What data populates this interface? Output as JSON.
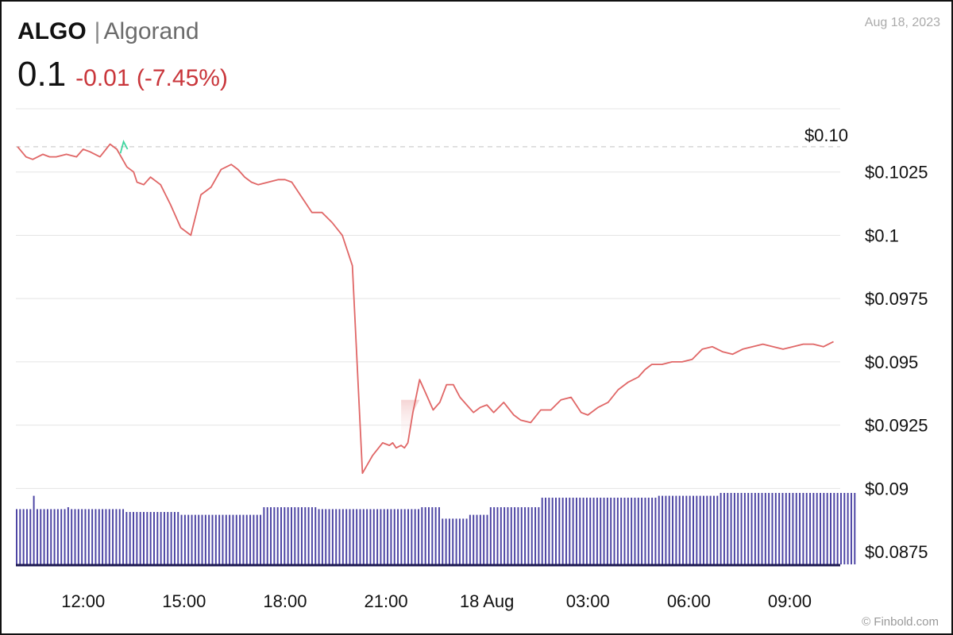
{
  "header": {
    "symbol": "ALGO",
    "divider": "|",
    "name": "Algorand",
    "price": "0.1",
    "change": "-0.01 (-7.45%)",
    "date": "Aug 18, 2023",
    "credit": "© Finbold.com"
  },
  "colors": {
    "line_down": "#e06666",
    "line_up": "#3fd6a0",
    "volume": "#4b43a3",
    "grid": "#e4e4e4",
    "reference": "#d6d6d6",
    "change_text": "#c9363b"
  },
  "chart_data": {
    "type": "line",
    "y_ticks": [
      {
        "value": 0.1025,
        "label": "$0.1025"
      },
      {
        "value": 0.1,
        "label": "$0.1"
      },
      {
        "value": 0.0975,
        "label": "$0.0975"
      },
      {
        "value": 0.095,
        "label": "$0.095"
      },
      {
        "value": 0.0925,
        "label": "$0.0925"
      },
      {
        "value": 0.09,
        "label": "$0.09"
      },
      {
        "value": 0.0875,
        "label": "$0.0875"
      }
    ],
    "reference_line": {
      "value": 0.1035,
      "label": "$0.10"
    },
    "ylim": [
      0.087,
      0.105
    ],
    "xlim_hours": [
      10.0,
      34.5
    ],
    "x_ticks": [
      {
        "hour": 12,
        "label": "12:00"
      },
      {
        "hour": 15,
        "label": "15:00"
      },
      {
        "hour": 18,
        "label": "18:00"
      },
      {
        "hour": 21,
        "label": "21:00"
      },
      {
        "hour": 24,
        "label": "18 Aug"
      },
      {
        "hour": 27,
        "label": "03:00"
      },
      {
        "hour": 30,
        "label": "06:00"
      },
      {
        "hour": 33,
        "label": "09:00"
      }
    ],
    "price_series": {
      "x_hours": [
        10.05,
        10.3,
        10.5,
        10.8,
        11.0,
        11.2,
        11.5,
        11.8,
        12.0,
        12.2,
        12.5,
        12.8,
        13.0,
        13.3,
        13.5,
        13.6,
        13.8,
        14.0,
        14.3,
        14.6,
        14.9,
        15.2,
        15.5,
        15.8,
        16.1,
        16.4,
        16.6,
        16.8,
        17.0,
        17.2,
        17.5,
        17.8,
        18.0,
        18.2,
        18.5,
        18.8,
        19.1,
        19.4,
        19.7,
        20.0,
        20.3,
        20.6,
        20.9,
        21.1,
        21.2,
        21.3,
        21.45,
        21.55,
        21.65,
        21.8,
        22.0,
        22.2,
        22.4,
        22.6,
        22.8,
        23.0,
        23.2,
        23.4,
        23.6,
        23.8,
        24.0,
        24.2,
        24.5,
        24.8,
        25.0,
        25.3,
        25.6,
        25.9,
        26.2,
        26.5,
        26.8,
        27.0,
        27.3,
        27.6,
        27.9,
        28.2,
        28.5,
        28.7,
        28.9,
        29.2,
        29.5,
        29.8,
        30.1,
        30.4,
        30.7,
        31.0,
        31.3,
        31.6,
        31.9,
        32.2,
        32.5,
        32.8,
        33.1,
        33.4,
        33.7,
        34.0,
        34.3
      ],
      "values": [
        0.1035,
        0.1031,
        0.103,
        0.1032,
        0.1031,
        0.1031,
        0.1032,
        0.1031,
        0.1034,
        0.1033,
        0.1031,
        0.1036,
        0.1034,
        0.1027,
        0.1025,
        0.1021,
        0.102,
        0.1023,
        0.102,
        0.1012,
        0.1003,
        0.1,
        0.1016,
        0.1019,
        0.1026,
        0.1028,
        0.1026,
        0.1023,
        0.1021,
        0.102,
        0.1021,
        0.1022,
        0.1022,
        0.1021,
        0.1015,
        0.1009,
        0.1009,
        0.1005,
        0.1,
        0.0988,
        0.0906,
        0.0913,
        0.0918,
        0.0917,
        0.0918,
        0.0916,
        0.0917,
        0.0916,
        0.0918,
        0.093,
        0.0943,
        0.0937,
        0.0931,
        0.0934,
        0.0941,
        0.0941,
        0.0936,
        0.0933,
        0.093,
        0.0932,
        0.0933,
        0.093,
        0.0934,
        0.0929,
        0.0927,
        0.0926,
        0.0931,
        0.0931,
        0.0935,
        0.0936,
        0.093,
        0.0929,
        0.0932,
        0.0934,
        0.0939,
        0.0942,
        0.0944,
        0.0947,
        0.0949,
        0.0949,
        0.095,
        0.095,
        0.0951,
        0.0955,
        0.0956,
        0.0954,
        0.0953,
        0.0955,
        0.0956,
        0.0957,
        0.0956,
        0.0955,
        0.0956,
        0.0957,
        0.0957,
        0.0956,
        0.0958
      ],
      "up_segment_end_index": 0
    },
    "volume_bars": {
      "x_start": 10.0,
      "x_end": 34.5,
      "count": 240,
      "relative_heights": [
        0.58,
        0.58,
        0.58,
        0.58,
        0.58,
        0.72,
        0.58,
        0.58,
        0.58,
        0.58,
        0.58,
        0.58,
        0.58,
        0.58,
        0.58,
        0.6,
        0.58,
        0.58,
        0.58,
        0.58,
        0.58,
        0.58,
        0.58,
        0.58,
        0.58,
        0.58,
        0.58,
        0.58,
        0.58,
        0.58,
        0.58,
        0.58,
        0.55,
        0.55,
        0.55,
        0.55,
        0.55,
        0.55,
        0.55,
        0.55,
        0.55,
        0.55,
        0.55,
        0.55,
        0.55,
        0.55,
        0.55,
        0.55,
        0.52,
        0.52,
        0.52,
        0.52,
        0.52,
        0.52,
        0.52,
        0.52,
        0.52,
        0.52,
        0.52,
        0.52,
        0.52,
        0.52,
        0.52,
        0.52,
        0.52,
        0.52,
        0.52,
        0.52,
        0.52,
        0.52,
        0.52,
        0.52,
        0.6,
        0.6,
        0.6,
        0.6,
        0.6,
        0.6,
        0.6,
        0.6,
        0.6,
        0.6,
        0.6,
        0.6,
        0.6,
        0.6,
        0.6,
        0.6,
        0.58,
        0.58,
        0.58,
        0.58,
        0.58,
        0.58,
        0.58,
        0.58,
        0.58,
        0.58,
        0.58,
        0.58,
        0.58,
        0.58,
        0.58,
        0.58,
        0.58,
        0.58,
        0.58,
        0.58,
        0.58,
        0.58,
        0.58,
        0.58,
        0.58,
        0.58,
        0.58,
        0.58,
        0.58,
        0.58,
        0.6,
        0.6,
        0.6,
        0.6,
        0.6,
        0.6,
        0.48,
        0.48,
        0.48,
        0.48,
        0.48,
        0.48,
        0.48,
        0.48,
        0.52,
        0.52,
        0.52,
        0.52,
        0.52,
        0.52,
        0.6,
        0.6,
        0.6,
        0.6,
        0.6,
        0.6,
        0.6,
        0.6,
        0.6,
        0.6,
        0.6,
        0.6,
        0.6,
        0.6,
        0.6,
        0.7,
        0.7,
        0.7,
        0.7,
        0.7,
        0.7,
        0.7,
        0.7,
        0.7,
        0.7,
        0.7,
        0.7,
        0.7,
        0.7,
        0.7,
        0.7,
        0.7,
        0.7,
        0.7,
        0.7,
        0.7,
        0.7,
        0.7,
        0.7,
        0.7,
        0.7,
        0.7,
        0.7,
        0.7,
        0.7,
        0.7,
        0.7,
        0.7,
        0.7,
        0.72,
        0.72,
        0.72,
        0.72,
        0.72,
        0.72,
        0.72,
        0.72,
        0.72,
        0.72,
        0.72,
        0.72,
        0.72,
        0.72,
        0.72,
        0.72,
        0.72,
        0.72,
        0.75,
        0.75,
        0.75,
        0.75,
        0.75,
        0.75,
        0.75,
        0.75,
        0.75,
        0.75,
        0.75,
        0.75,
        0.75,
        0.75,
        0.75,
        0.75,
        0.75,
        0.75,
        0.75,
        0.75,
        0.75,
        0.75,
        0.75,
        0.75,
        0.75,
        0.75,
        0.75,
        0.75,
        0.75,
        0.75,
        0.75,
        0.75,
        0.75,
        0.75,
        0.75,
        0.75,
        0.75,
        0.75,
        0.75,
        0.75
      ]
    },
    "grid": true
  }
}
